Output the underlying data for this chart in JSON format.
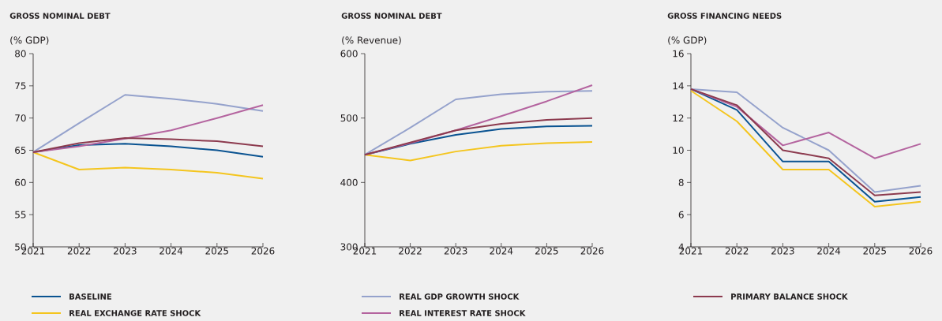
{
  "chart_data": [
    {
      "type": "line",
      "title": "GROSS NOMINAL DEBT",
      "ylabel": "(% GDP)",
      "x": [
        2021,
        2022,
        2023,
        2024,
        2025,
        2026
      ],
      "xlim": [
        2021,
        2026
      ],
      "xticks": [
        2021,
        2022,
        2023,
        2024,
        2025,
        2026
      ],
      "ylim": [
        50,
        80
      ],
      "yticks": [
        50,
        55,
        60,
        65,
        70,
        75,
        80
      ],
      "grid": false,
      "legend": "bottom",
      "marker": "none",
      "line_style": "solid",
      "series": [
        {
          "name": "BASELINE",
          "color": "#0a5391",
          "values": [
            64.7,
            65.8,
            66.0,
            65.6,
            65.0,
            64.0
          ]
        },
        {
          "name": "REAL EXCHANGE RATE SHOCK",
          "color": "#f4c51e",
          "values": [
            64.7,
            62.0,
            62.3,
            62.0,
            61.5,
            60.6
          ]
        },
        {
          "name": "REAL GDP GROWTH SHOCK",
          "color": "#95a2cc",
          "values": [
            64.7,
            69.2,
            73.6,
            73.0,
            72.2,
            71.1
          ]
        },
        {
          "name": "REAL INTEREST RATE SHOCK",
          "color": "#b4649f",
          "values": [
            64.7,
            65.6,
            66.8,
            68.1,
            70.0,
            72.0
          ]
        },
        {
          "name": "PRIMARY BALANCE SHOCK",
          "color": "#8c3a4e",
          "values": [
            64.7,
            66.1,
            66.9,
            66.7,
            66.4,
            65.6
          ]
        }
      ]
    },
    {
      "type": "line",
      "title": "GROSS NOMINAL DEBT",
      "ylabel": "(% Revenue)",
      "x": [
        2021,
        2022,
        2023,
        2024,
        2025,
        2026
      ],
      "xlim": [
        2021,
        2026
      ],
      "xticks": [
        2021,
        2022,
        2023,
        2024,
        2025,
        2026
      ],
      "ylim": [
        300,
        600
      ],
      "yticks": [
        300,
        400,
        500,
        600
      ],
      "grid": false,
      "marker": "none",
      "line_style": "solid",
      "series": [
        {
          "color": "#0a5391",
          "values": [
            443,
            460,
            474,
            483,
            487,
            488
          ]
        },
        {
          "color": "#f4c51e",
          "values": [
            443,
            434,
            448,
            457,
            461,
            463
          ]
        },
        {
          "color": "#95a2cc",
          "values": [
            443,
            485,
            529,
            537,
            541,
            542
          ]
        },
        {
          "color": "#b4649f",
          "values": [
            443,
            461,
            481,
            503,
            526,
            551
          ]
        },
        {
          "color": "#8c3a4e",
          "values": [
            443,
            462,
            481,
            491,
            497,
            500
          ]
        }
      ]
    },
    {
      "type": "line",
      "title": "GROSS FINANCING NEEDS",
      "ylabel": "(% GDP)",
      "x": [
        2021,
        2022,
        2023,
        2024,
        2025,
        2026
      ],
      "xlim": [
        2021,
        2026
      ],
      "xticks": [
        2021,
        2022,
        2023,
        2024,
        2025,
        2026
      ],
      "ylim": [
        4,
        16
      ],
      "yticks": [
        4,
        6,
        8,
        10,
        12,
        14,
        16
      ],
      "grid": false,
      "marker": "none",
      "line_style": "solid",
      "series": [
        {
          "color": "#0a5391",
          "values": [
            13.8,
            12.5,
            9.3,
            9.3,
            6.8,
            7.1
          ]
        },
        {
          "color": "#f4c51e",
          "values": [
            13.7,
            11.8,
            8.8,
            8.8,
            6.5,
            6.8
          ]
        },
        {
          "color": "#95a2cc",
          "values": [
            13.8,
            13.6,
            11.4,
            10.0,
            7.4,
            7.8
          ]
        },
        {
          "color": "#b4649f",
          "values": [
            13.8,
            12.7,
            10.3,
            11.1,
            9.5,
            10.4
          ]
        },
        {
          "color": "#8c3a4e",
          "values": [
            13.8,
            12.8,
            10.0,
            9.5,
            7.2,
            7.4
          ]
        }
      ]
    }
  ]
}
